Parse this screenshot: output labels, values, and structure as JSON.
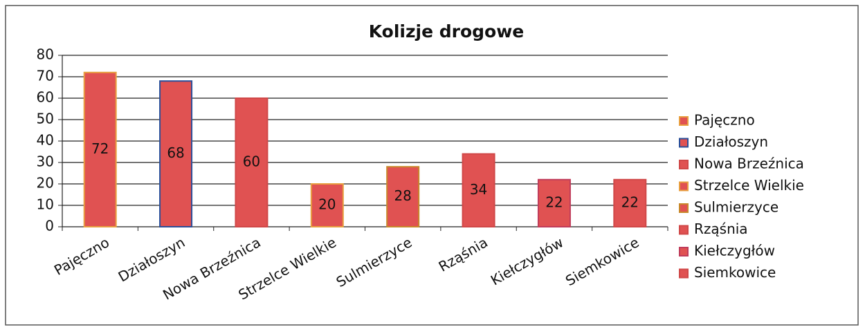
{
  "chart_data": {
    "type": "bar",
    "title": "Kolizje drogowe",
    "categories": [
      "Pajęczno",
      "Działoszyn",
      "Nowa Brzeźnica",
      "Strzelce Wielkie",
      "Sulmierzyce",
      "Rząśnia",
      "Kiełczygłów",
      "Siemkowice"
    ],
    "values": [
      72,
      68,
      60,
      20,
      28,
      34,
      22,
      22
    ],
    "colors": [
      "#e05252",
      "#e05252",
      "#e05252",
      "#e05252",
      "#e05252",
      "#e05252",
      "#e05252",
      "#e05252"
    ],
    "edge_colors": [
      "#e8a040",
      "#2a4f9a",
      "#d04848",
      "#e8a040",
      "#c8882a",
      "#d04848",
      "#c03c5a",
      "#d04848"
    ],
    "ylim": [
      0,
      80
    ],
    "yticks": [
      0,
      10,
      20,
      30,
      40,
      50,
      60,
      70,
      80
    ],
    "grid": true,
    "legend": "right"
  }
}
